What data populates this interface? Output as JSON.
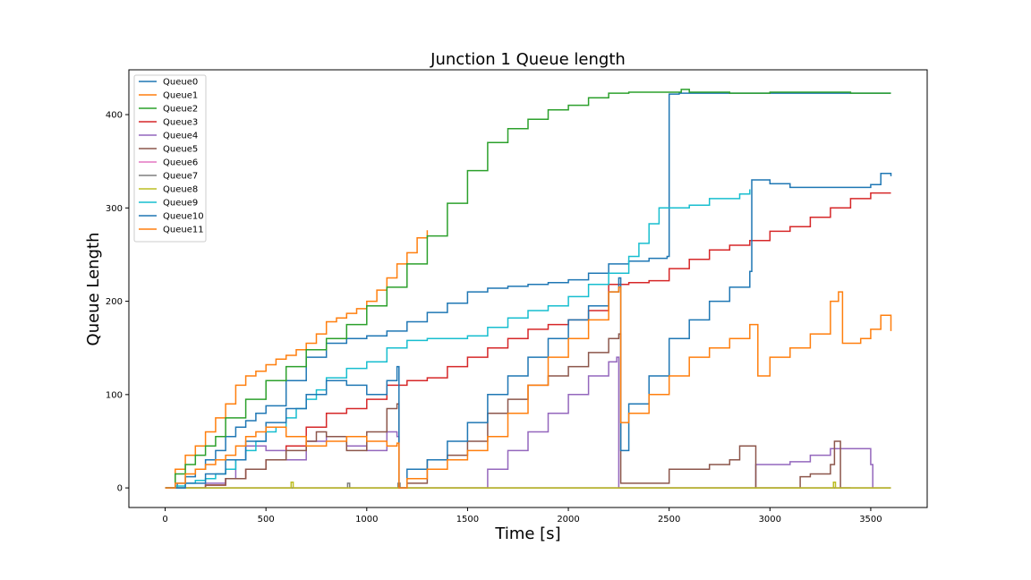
{
  "chart_data": {
    "type": "line",
    "title": "Junction 1 Queue length",
    "xlabel": "Time [s]",
    "ylabel": "Queue Length",
    "xlim": [
      -180,
      3780
    ],
    "ylim": [
      -21,
      448
    ],
    "xticks": [
      0,
      500,
      1000,
      1500,
      2000,
      2500,
      3000,
      3500
    ],
    "yticks": [
      0,
      100,
      200,
      300,
      400
    ],
    "legend_position": "upper-left",
    "grid": false,
    "series": [
      {
        "name": "Queue0",
        "color": "#1f77b4",
        "x": [
          0,
          60,
          100,
          150,
          200,
          250,
          300,
          350,
          400,
          450,
          500,
          600,
          700,
          800,
          900,
          1000,
          1100,
          1200,
          1300,
          1400,
          1500,
          1600,
          1700,
          1800,
          1900,
          2000,
          2100,
          2200,
          2300,
          2400,
          2490,
          2500,
          2550,
          2700,
          2900,
          3100,
          3300,
          3500,
          3600
        ],
        "y": [
          0,
          5,
          12,
          20,
          30,
          40,
          55,
          65,
          72,
          80,
          88,
          115,
          140,
          155,
          160,
          163,
          168,
          178,
          188,
          198,
          210,
          214,
          216,
          218,
          220,
          223,
          230,
          240,
          243,
          246,
          248,
          422,
          423,
          423,
          423,
          423,
          423,
          423,
          423
        ]
      },
      {
        "name": "Queue1",
        "color": "#ff7f0e",
        "x": [
          0,
          50,
          100,
          150,
          200,
          250,
          300,
          350,
          400,
          450,
          500,
          550,
          600,
          650,
          700,
          750,
          800,
          850,
          900,
          950,
          1000,
          1050,
          1100,
          1150,
          1200,
          1250,
          1300
        ],
        "y": [
          0,
          20,
          35,
          45,
          60,
          75,
          90,
          110,
          120,
          125,
          132,
          138,
          142,
          148,
          155,
          165,
          178,
          182,
          187,
          192,
          200,
          212,
          225,
          240,
          252,
          268,
          276
        ]
      },
      {
        "name": "Queue2",
        "color": "#2ca02c",
        "x": [
          0,
          50,
          100,
          150,
          200,
          250,
          300,
          400,
          500,
          600,
          700,
          800,
          900,
          1000,
          1100,
          1200,
          1300,
          1400,
          1500,
          1600,
          1700,
          1800,
          1900,
          2000,
          2100,
          2200,
          2300,
          2400,
          2500,
          2560,
          2600,
          2800,
          3000,
          3200,
          3400,
          3600
        ],
        "y": [
          0,
          15,
          25,
          35,
          45,
          55,
          75,
          95,
          115,
          130,
          148,
          160,
          175,
          195,
          215,
          240,
          270,
          305,
          340,
          370,
          385,
          395,
          405,
          410,
          418,
          423,
          424,
          424,
          424,
          427,
          424,
          423,
          424,
          424,
          423,
          423
        ]
      },
      {
        "name": "Queue3",
        "color": "#d62728",
        "x": [
          0,
          100,
          200,
          300,
          400,
          500,
          600,
          700,
          800,
          900,
          1000,
          1100,
          1200,
          1300,
          1400,
          1500,
          1600,
          1700,
          1800,
          1900,
          2000,
          2100,
          2200,
          2300,
          2400,
          2500,
          2600,
          2700,
          2800,
          2900,
          3000,
          3100,
          3200,
          3300,
          3400,
          3500,
          3600
        ],
        "y": [
          0,
          0,
          3,
          10,
          20,
          30,
          45,
          65,
          80,
          85,
          95,
          110,
          115,
          118,
          130,
          140,
          150,
          160,
          170,
          175,
          180,
          190,
          218,
          220,
          222,
          235,
          245,
          255,
          260,
          265,
          275,
          280,
          290,
          300,
          310,
          316,
          316
        ]
      },
      {
        "name": "Queue4",
        "color": "#9467bd",
        "x": [
          0,
          100,
          200,
          300,
          350,
          400,
          500,
          600,
          700,
          800,
          900,
          1000,
          1100,
          1150,
          1160,
          1200,
          1400,
          1500,
          1600,
          1700,
          1800,
          1900,
          2000,
          2100,
          2200,
          2240,
          2250,
          2300,
          2500,
          2700,
          2900,
          2930,
          3000,
          3100,
          3200,
          3300,
          3400,
          3500,
          3510
        ],
        "y": [
          0,
          0,
          5,
          10,
          30,
          45,
          40,
          30,
          50,
          55,
          45,
          40,
          60,
          55,
          0,
          0,
          0,
          0,
          20,
          40,
          60,
          80,
          100,
          120,
          135,
          140,
          0,
          0,
          0,
          0,
          0,
          25,
          25,
          28,
          35,
          42,
          42,
          25,
          0
        ]
      },
      {
        "name": "Queue5",
        "color": "#8c564b",
        "x": [
          0,
          100,
          200,
          300,
          400,
          500,
          600,
          700,
          750,
          800,
          900,
          1000,
          1100,
          1150,
          1160,
          1200,
          1300,
          1400,
          1500,
          1600,
          1700,
          1800,
          1900,
          2000,
          2100,
          2200,
          2250,
          2260,
          2400,
          2500,
          2600,
          2700,
          2800,
          2850,
          2900,
          2930,
          3100,
          3150,
          3200,
          3300,
          3320,
          3350,
          3400
        ],
        "y": [
          0,
          0,
          3,
          10,
          20,
          30,
          40,
          50,
          60,
          55,
          40,
          60,
          85,
          90,
          0,
          5,
          30,
          35,
          50,
          80,
          95,
          110,
          120,
          130,
          145,
          160,
          165,
          5,
          5,
          20,
          20,
          25,
          30,
          45,
          45,
          0,
          0,
          12,
          15,
          25,
          50,
          0,
          0
        ]
      },
      {
        "name": "Queue6",
        "color": "#e377c2",
        "x": [
          0,
          3600
        ],
        "y": [
          0,
          0
        ]
      },
      {
        "name": "Queue7",
        "color": "#7f7f7f",
        "x": [
          0,
          900,
          905,
          915,
          1150,
          1155,
          1165,
          3600
        ],
        "y": [
          0,
          0,
          5,
          0,
          0,
          5,
          0,
          0
        ]
      },
      {
        "name": "Queue8",
        "color": "#bcbd22",
        "x": [
          0,
          620,
          625,
          635,
          3310,
          3315,
          3325,
          3600
        ],
        "y": [
          0,
          0,
          6,
          0,
          0,
          6,
          0,
          0
        ]
      },
      {
        "name": "Queue9",
        "color": "#17becf",
        "x": [
          0,
          50,
          100,
          150,
          200,
          250,
          300,
          350,
          400,
          450,
          500,
          550,
          600,
          650,
          700,
          750,
          800,
          900,
          1000,
          1100,
          1200,
          1300,
          1400,
          1500,
          1600,
          1700,
          1800,
          1900,
          2000,
          2100,
          2200,
          2300,
          2350,
          2400,
          2450,
          2500,
          2600,
          2700,
          2800,
          2850,
          2900
        ],
        "y": [
          0,
          2,
          5,
          8,
          10,
          15,
          20,
          30,
          40,
          50,
          60,
          65,
          75,
          85,
          95,
          105,
          118,
          128,
          135,
          150,
          158,
          160,
          160,
          163,
          172,
          182,
          190,
          195,
          205,
          218,
          230,
          248,
          262,
          283,
          300,
          300,
          303,
          310,
          310,
          315,
          320
        ]
      },
      {
        "name": "Queue10",
        "color": "#1f77b4",
        "x": [
          0,
          100,
          200,
          300,
          400,
          500,
          600,
          700,
          800,
          900,
          1000,
          1100,
          1150,
          1160,
          1200,
          1300,
          1400,
          1500,
          1600,
          1700,
          1800,
          1900,
          2000,
          2100,
          2200,
          2250,
          2260,
          2300,
          2400,
          2500,
          2600,
          2700,
          2800,
          2900,
          2910,
          3000,
          3100,
          3200,
          3300,
          3400,
          3500,
          3550,
          3600
        ],
        "y": [
          0,
          5,
          15,
          30,
          50,
          70,
          85,
          100,
          115,
          110,
          100,
          115,
          130,
          0,
          20,
          30,
          50,
          70,
          100,
          120,
          140,
          160,
          180,
          195,
          210,
          225,
          40,
          90,
          120,
          160,
          180,
          200,
          215,
          232,
          330,
          326,
          322,
          322,
          322,
          322,
          325,
          337,
          334
        ]
      },
      {
        "name": "Queue11",
        "color": "#ff7f0e",
        "x": [
          0,
          50,
          100,
          150,
          200,
          250,
          300,
          350,
          400,
          450,
          500,
          600,
          700,
          800,
          900,
          1000,
          1100,
          1150,
          1160,
          1200,
          1300,
          1400,
          1500,
          1600,
          1700,
          1800,
          1900,
          2000,
          2100,
          2200,
          2250,
          2260,
          2300,
          2400,
          2500,
          2600,
          2700,
          2800,
          2900,
          2940,
          3000,
          3100,
          3200,
          3300,
          3340,
          3360,
          3450,
          3500,
          3550,
          3600
        ],
        "y": [
          0,
          5,
          15,
          20,
          25,
          30,
          35,
          45,
          55,
          60,
          65,
          55,
          45,
          50,
          55,
          50,
          45,
          48,
          0,
          10,
          20,
          30,
          40,
          55,
          80,
          110,
          140,
          160,
          180,
          210,
          215,
          70,
          80,
          100,
          120,
          140,
          150,
          160,
          175,
          120,
          140,
          150,
          165,
          200,
          210,
          155,
          160,
          170,
          185,
          168
        ]
      }
    ]
  }
}
